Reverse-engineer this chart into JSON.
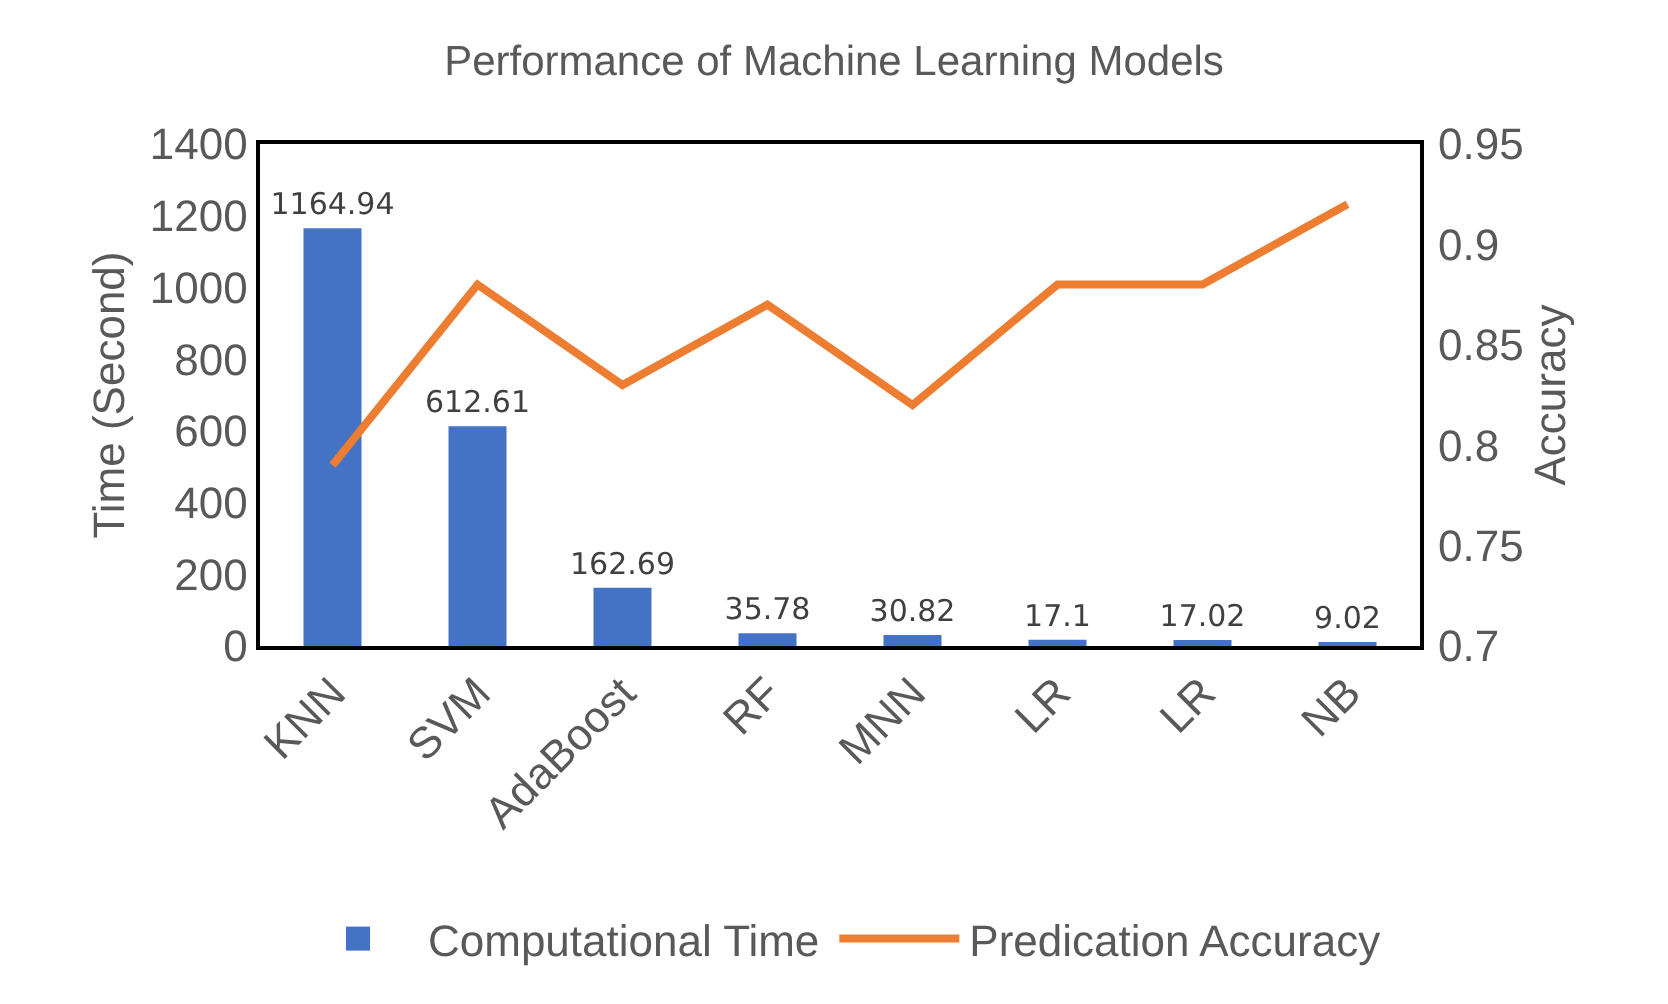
{
  "chart_data": {
    "type": "bar",
    "title": "Performance of Machine Learning Models",
    "categories": [
      "KNN",
      "SVM",
      "AdaBoost",
      "RF",
      "MNN",
      "LR",
      "LR",
      "NB"
    ],
    "series": [
      {
        "name": "Computational Time",
        "color": "#4472c4",
        "values": [
          1164.94,
          612.61,
          162.69,
          35.78,
          30.82,
          17.1,
          17.02,
          9.02
        ]
      },
      {
        "name": "Predication Accuracy",
        "type": "line",
        "axis": "y2",
        "color": "#ed7d31",
        "values": [
          0.79,
          0.88,
          0.83,
          0.87,
          0.82,
          0.88,
          0.88,
          0.92
        ]
      }
    ],
    "ylabel": "Time (Second)",
    "y2label": "Accuracy",
    "ylim": [
      0,
      1400
    ],
    "yticks": [
      0,
      200,
      400,
      600,
      800,
      1000,
      1200,
      1400
    ],
    "y2lim": [
      0.7,
      0.95
    ],
    "y2ticks": [
      {
        "value": 0.7,
        "label": "0.7"
      },
      {
        "value": 0.75,
        "label": "0.75"
      },
      {
        "value": 0.8,
        "label": "0.8"
      },
      {
        "value": 0.85,
        "label": "0.85"
      },
      {
        "value": 0.9,
        "label": "0.9"
      },
      {
        "value": 0.95,
        "label": "0.95"
      }
    ],
    "value_labels": [
      "1164.94",
      "612.61",
      "162.69",
      "35.78",
      "30.82",
      "17.1",
      "17.02",
      "9.02"
    ],
    "grid": false,
    "legend": "bottom",
    "marker": "none",
    "line_style": "solid"
  }
}
